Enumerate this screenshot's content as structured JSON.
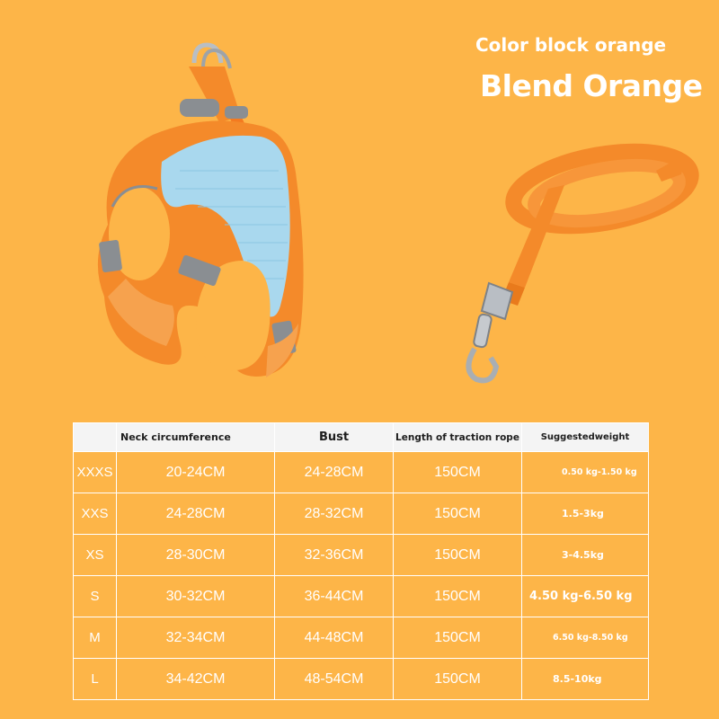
{
  "product": {
    "color_subtitle": "Color block orange",
    "color_title": "Blend Orange",
    "harness_image": "orange-blue-mesh-dog-harness",
    "leash_image": "orange-traction-leash"
  },
  "colors": {
    "background": "#FDB548",
    "product_orange": "#F48A2A",
    "mesh_blue": "#A9D8EE",
    "reflective_gray": "#8A8E92",
    "table_border": "#FFFFFF",
    "table_header_bg": "#F4F4F4"
  },
  "size_table": {
    "headers": {
      "size": "",
      "neck": "Neck circumference",
      "bust": "Bust",
      "rope": "Length of traction rope",
      "weight": "Suggestedweight"
    },
    "rows": [
      {
        "size": "XXXS",
        "neck": "20-24CM",
        "bust": "24-28CM",
        "rope": "150CM",
        "weight": "0.50 kg-1.50 kg"
      },
      {
        "size": "XXS",
        "neck": "24-28CM",
        "bust": "28-32CM",
        "rope": "150CM",
        "weight": "1.5-3kg"
      },
      {
        "size": "XS",
        "neck": "28-30CM",
        "bust": "32-36CM",
        "rope": "150CM",
        "weight": "3-4.5kg"
      },
      {
        "size": "S",
        "neck": "30-32CM",
        "bust": "36-44CM",
        "rope": "150CM",
        "weight": "4.50 kg-6.50 kg"
      },
      {
        "size": "M",
        "neck": "32-34CM",
        "bust": "44-48CM",
        "rope": "150CM",
        "weight": "6.50 kg-8.50 kg"
      },
      {
        "size": "L",
        "neck": "34-42CM",
        "bust": "48-54CM",
        "rope": "150CM",
        "weight": "8.5-10kg"
      }
    ]
  }
}
